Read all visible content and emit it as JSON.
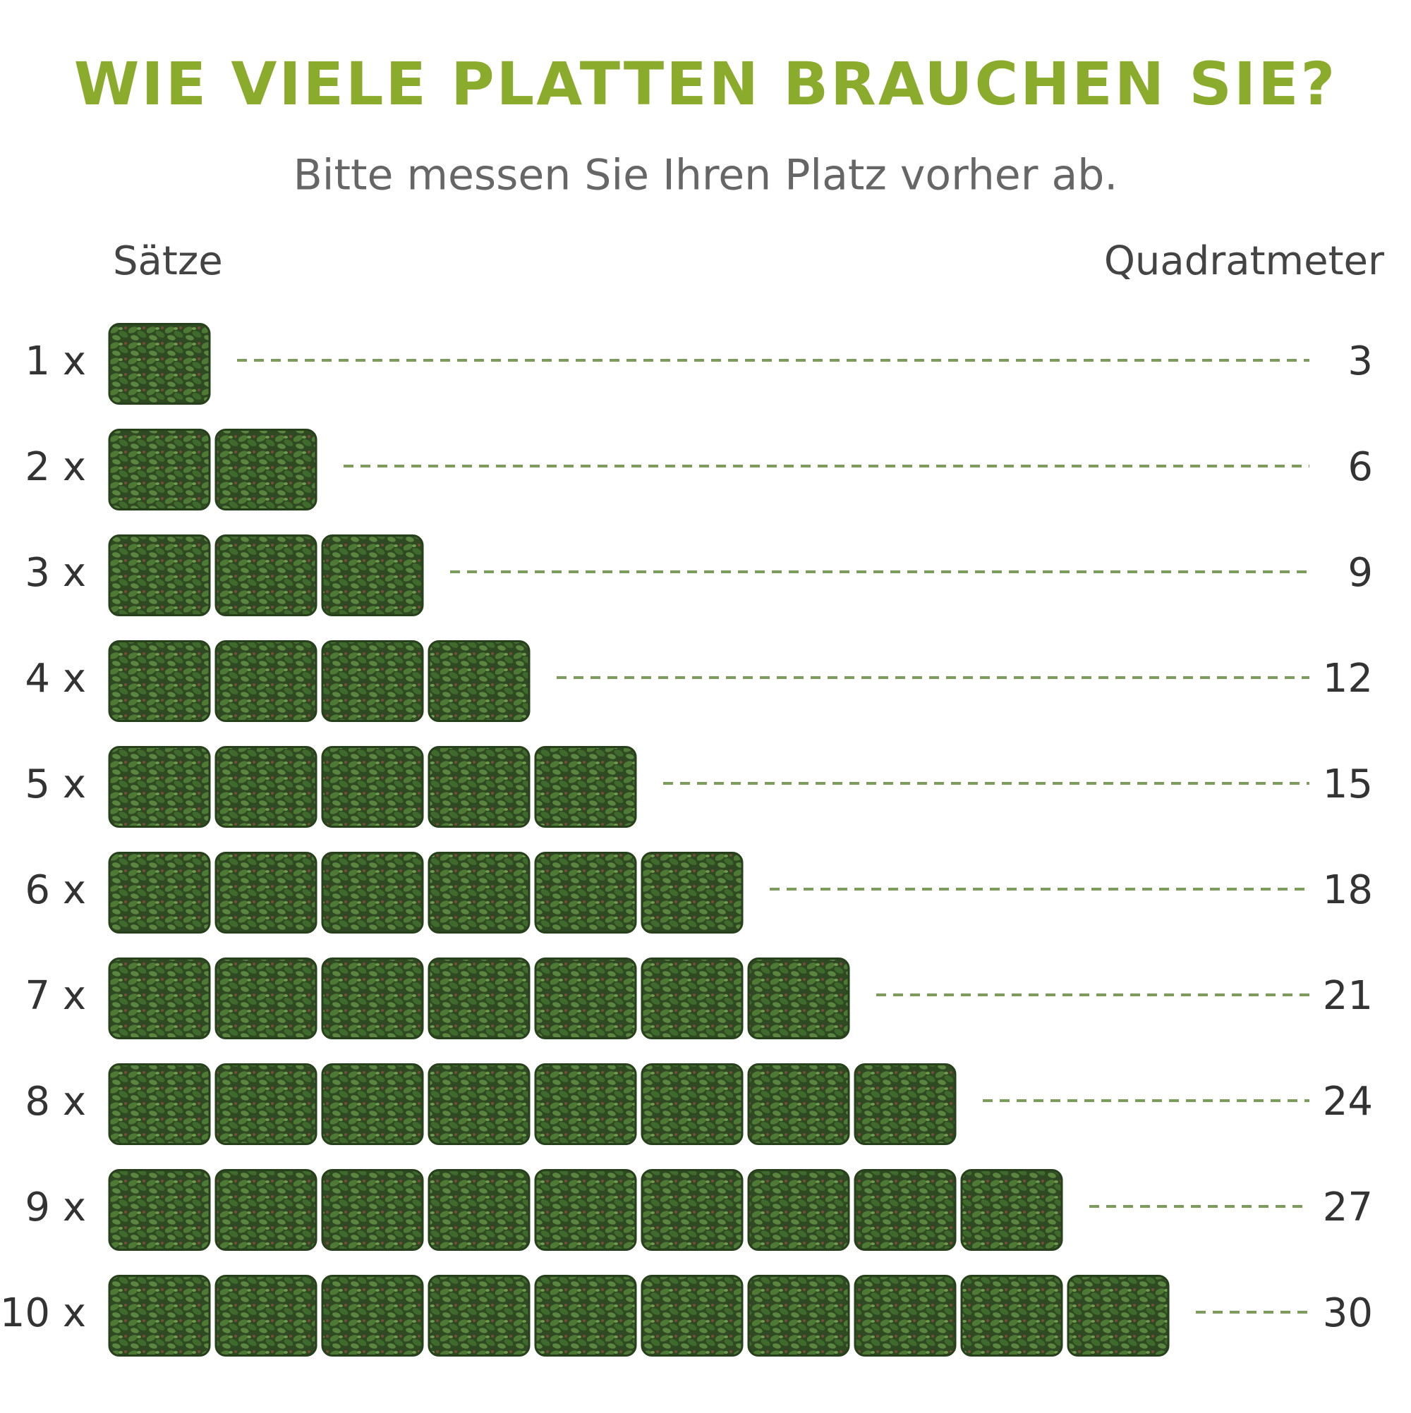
{
  "title": "WIE VIELE PLATTEN BRAUCHEN SIE?",
  "subtitle": "Bitte messen Sie Ihren Platz vorher ab.",
  "headers": {
    "left": "Sätze",
    "right": "Quadratmeter"
  },
  "rows": [
    {
      "sets": "1 x",
      "area": "3"
    },
    {
      "sets": "2 x",
      "area": "6"
    },
    {
      "sets": "3 x",
      "area": "9"
    },
    {
      "sets": "4 x",
      "area": "12"
    },
    {
      "sets": "5 x",
      "area": "15"
    },
    {
      "sets": "6 x",
      "area": "18"
    },
    {
      "sets": "7 x",
      "area": "21"
    },
    {
      "sets": "8 x",
      "area": "24"
    },
    {
      "sets": "9 x",
      "area": "27"
    },
    {
      "sets": "10 x",
      "area": "30"
    }
  ]
}
